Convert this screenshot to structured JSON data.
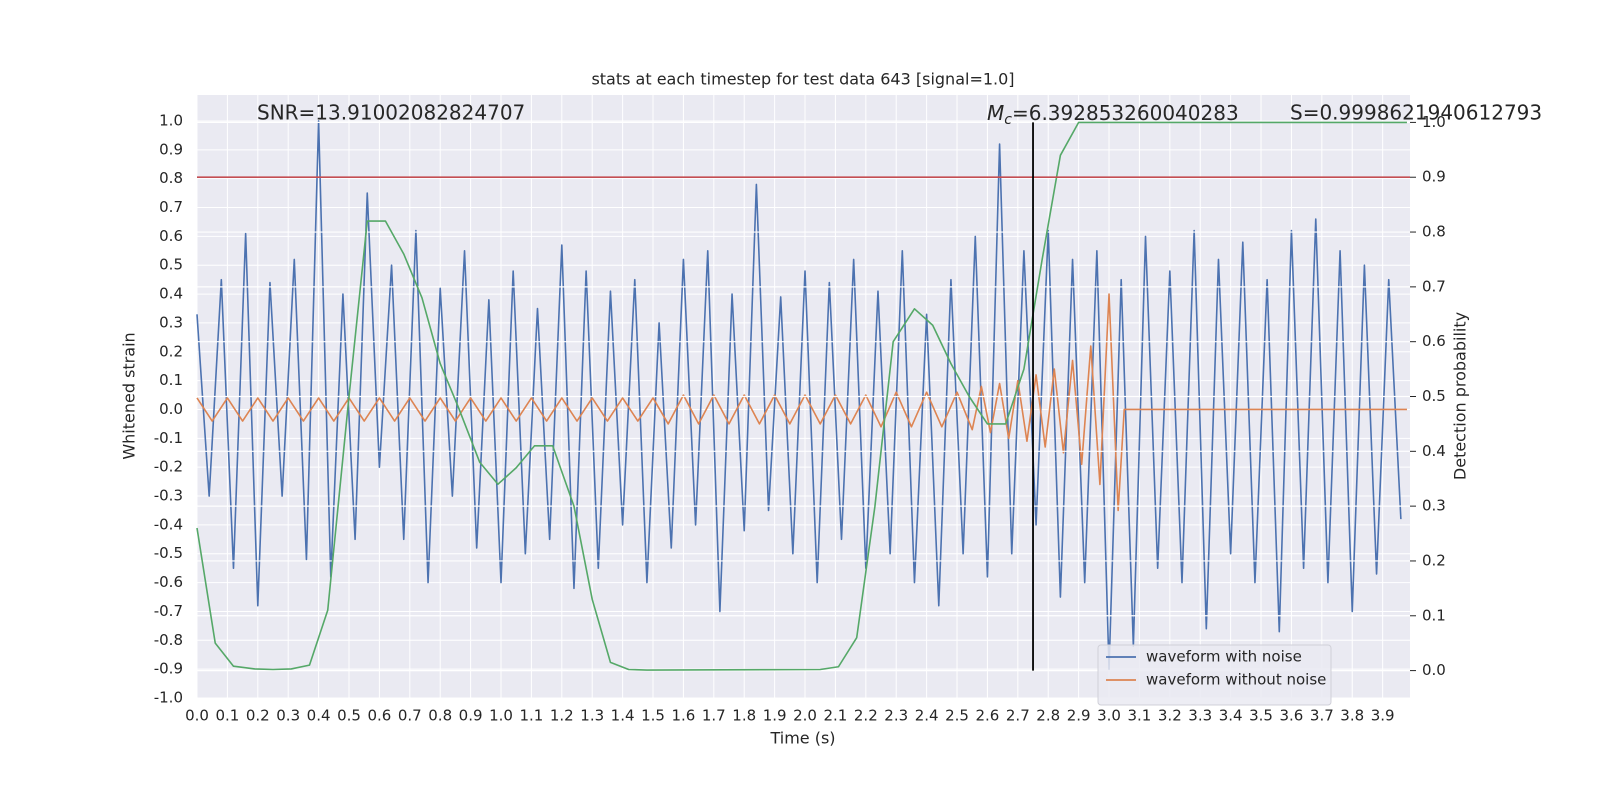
{
  "chart_data": {
    "type": "line",
    "title": "stats at each timestep for test data 643 [signal=1.0]",
    "x_label": "Time (s)",
    "y_label": "Whitened strain",
    "y2_label": "Detection probability",
    "xlim": [
      0,
      3.99
    ],
    "ylim": [
      -1.0,
      1.09
    ],
    "y2lim": [
      -0.05,
      1.05
    ],
    "xticks": [
      {
        "value": 0,
        "label": "0.0"
      },
      0.1,
      0.2,
      0.3,
      0.4,
      0.5,
      0.6,
      0.7,
      0.8,
      0.9,
      {
        "value": 1,
        "label": "1.0"
      },
      1.1,
      1.2,
      1.3,
      1.4,
      1.5,
      1.6,
      1.7,
      1.8,
      1.9,
      {
        "value": 2,
        "label": "2.0"
      },
      2.1,
      2.2,
      2.3,
      2.4,
      2.5,
      2.6,
      2.7,
      2.8,
      2.9,
      {
        "value": 3,
        "label": "3.0"
      },
      3.1,
      3.2,
      3.3,
      3.4,
      3.5,
      3.6,
      3.7,
      3.8,
      3.9
    ],
    "yticks": [
      {
        "value": -1,
        "label": "-1.0"
      },
      -0.9,
      -0.8,
      -0.7,
      -0.6,
      -0.5,
      -0.4,
      -0.3,
      -0.2,
      -0.1,
      {
        "value": 0,
        "label": "0.0"
      },
      0.1,
      0.2,
      0.3,
      0.4,
      0.5,
      0.6,
      0.7,
      0.8,
      0.9,
      {
        "value": 1,
        "label": "1.0"
      }
    ],
    "y2ticks": [
      {
        "value": 0,
        "label": "0.0"
      },
      0.1,
      0.2,
      0.3,
      0.4,
      0.5,
      0.6,
      0.7,
      0.8,
      0.9,
      {
        "value": 1,
        "label": "1.0"
      }
    ],
    "grid": true,
    "legend": "lower right",
    "series": [
      {
        "name": "waveform with noise",
        "color": "#4c72b0",
        "x": [
          0,
          0.04,
          0.08,
          0.12,
          0.16,
          0.2,
          0.24,
          0.28,
          0.32,
          0.36,
          0.4,
          0.44,
          0.48,
          0.52,
          0.56,
          0.6,
          0.64,
          0.68,
          0.72,
          0.76,
          0.8,
          0.84,
          0.88,
          0.92,
          0.96,
          1.0,
          1.04,
          1.08,
          1.12,
          1.16,
          1.2,
          1.24,
          1.28,
          1.32,
          1.36,
          1.4,
          1.44,
          1.48,
          1.52,
          1.56,
          1.6,
          1.64,
          1.68,
          1.72,
          1.76,
          1.8,
          1.84,
          1.88,
          1.92,
          1.96,
          2.0,
          2.04,
          2.08,
          2.12,
          2.16,
          2.2,
          2.24,
          2.28,
          2.32,
          2.36,
          2.4,
          2.44,
          2.48,
          2.52,
          2.56,
          2.6,
          2.64,
          2.68,
          2.72,
          2.76,
          2.8,
          2.84,
          2.88,
          2.92,
          2.96,
          3.0,
          3.04,
          3.08,
          3.12,
          3.16,
          3.2,
          3.24,
          3.28,
          3.32,
          3.36,
          3.4,
          3.44,
          3.48,
          3.52,
          3.56,
          3.6,
          3.64,
          3.68,
          3.72,
          3.76,
          3.8,
          3.84,
          3.88,
          3.92,
          3.96
        ],
        "values": [
          0.33,
          -0.3,
          0.45,
          -0.55,
          0.61,
          -0.68,
          0.44,
          -0.3,
          0.52,
          -0.52,
          1.0,
          -0.58,
          0.4,
          -0.45,
          0.75,
          -0.2,
          0.5,
          -0.45,
          0.62,
          -0.6,
          0.42,
          -0.3,
          0.55,
          -0.48,
          0.38,
          -0.6,
          0.48,
          -0.5,
          0.35,
          -0.45,
          0.57,
          -0.62,
          0.48,
          -0.55,
          0.41,
          -0.4,
          0.45,
          -0.6,
          0.3,
          -0.48,
          0.52,
          -0.4,
          0.55,
          -0.7,
          0.4,
          -0.42,
          0.78,
          -0.35,
          0.39,
          -0.5,
          0.48,
          -0.6,
          0.44,
          -0.45,
          0.52,
          -0.55,
          0.41,
          -0.5,
          0.55,
          -0.6,
          0.33,
          -0.68,
          0.45,
          -0.5,
          0.6,
          -0.58,
          0.92,
          -0.5,
          0.55,
          -0.4,
          0.62,
          -0.65,
          0.52,
          -0.6,
          0.55,
          -0.9,
          0.45,
          -0.82,
          0.6,
          -0.55,
          0.48,
          -0.6,
          0.62,
          -0.76,
          0.52,
          -0.5,
          0.58,
          -0.6,
          0.45,
          -0.77,
          0.62,
          -0.55,
          0.66,
          -0.6,
          0.55,
          -0.7,
          0.5,
          -0.57,
          0.45,
          -0.38
        ]
      },
      {
        "name": "waveform without noise",
        "color": "#dd8452",
        "x": [
          0,
          0.05,
          0.1,
          0.15,
          0.2,
          0.25,
          0.3,
          0.35,
          0.4,
          0.45,
          0.5,
          0.55,
          0.6,
          0.65,
          0.7,
          0.75,
          0.8,
          0.85,
          0.9,
          0.95,
          1.0,
          1.05,
          1.1,
          1.15,
          1.2,
          1.25,
          1.3,
          1.35,
          1.4,
          1.45,
          1.5,
          1.55,
          1.6,
          1.65,
          1.7,
          1.75,
          1.8,
          1.85,
          1.9,
          1.95,
          2.0,
          2.05,
          2.1,
          2.15,
          2.2,
          2.25,
          2.3,
          2.35,
          2.4,
          2.45,
          2.5,
          2.55,
          2.58,
          2.61,
          2.64,
          2.67,
          2.7,
          2.73,
          2.76,
          2.79,
          2.82,
          2.85,
          2.88,
          2.91,
          2.94,
          2.97,
          3.0,
          3.03,
          3.05,
          3.98
        ],
        "values": [
          0.04,
          -0.04,
          0.04,
          -0.04,
          0.04,
          -0.04,
          0.04,
          -0.04,
          0.04,
          -0.04,
          0.04,
          -0.04,
          0.04,
          -0.04,
          0.04,
          -0.04,
          0.04,
          -0.04,
          0.04,
          -0.04,
          0.04,
          -0.04,
          0.04,
          -0.04,
          0.04,
          -0.04,
          0.04,
          -0.04,
          0.04,
          -0.04,
          0.04,
          -0.05,
          0.05,
          -0.05,
          0.05,
          -0.05,
          0.05,
          -0.05,
          0.05,
          -0.05,
          0.05,
          -0.05,
          0.05,
          -0.05,
          0.05,
          -0.06,
          0.06,
          -0.06,
          0.06,
          -0.06,
          0.06,
          -0.07,
          0.08,
          -0.08,
          0.09,
          -0.1,
          0.1,
          -0.11,
          0.12,
          -0.13,
          0.14,
          -0.15,
          0.17,
          -0.19,
          0.22,
          -0.26,
          0.4,
          -0.35,
          0,
          0
        ]
      },
      {
        "color": "#55a868",
        "axis": "y2",
        "x": [
          0,
          0.06,
          0.12,
          0.19,
          0.25,
          0.31,
          0.37,
          0.43,
          0.5,
          0.56,
          0.62,
          0.68,
          0.74,
          0.8,
          0.86,
          0.93,
          0.99,
          1.05,
          1.11,
          1.17,
          1.24,
          1.3,
          1.36,
          1.42,
          1.48,
          2.05,
          2.11,
          2.17,
          2.23,
          2.29,
          2.36,
          2.42,
          2.48,
          2.54,
          2.6,
          2.66,
          2.72,
          2.78,
          2.84,
          2.9,
          3.98
        ],
        "values": [
          0.26,
          0.05,
          0.008,
          0.003,
          0.002,
          0.003,
          0.01,
          0.11,
          0.5,
          0.82,
          0.82,
          0.76,
          0.68,
          0.56,
          0.48,
          0.38,
          0.34,
          0.37,
          0.41,
          0.41,
          0.3,
          0.13,
          0.015,
          0.002,
          0.001,
          0.002,
          0.007,
          0.06,
          0.3,
          0.6,
          0.66,
          0.63,
          0.56,
          0.5,
          0.45,
          0.45,
          0.55,
          0.75,
          0.94,
          1.0,
          1.0
        ]
      }
    ],
    "hlines": [
      {
        "value": 0.9,
        "axis": "y2",
        "color": "#c44e52"
      }
    ],
    "vlines": [
      {
        "value": 2.75,
        "color": "#000000"
      }
    ],
    "annotations": {
      "snr": "SNR=13.91002082824707",
      "mc": {
        "symbol": "M",
        "subscript": "c",
        "text": "=6.392853260040283"
      },
      "s": "S=0.9998621940612793"
    }
  }
}
